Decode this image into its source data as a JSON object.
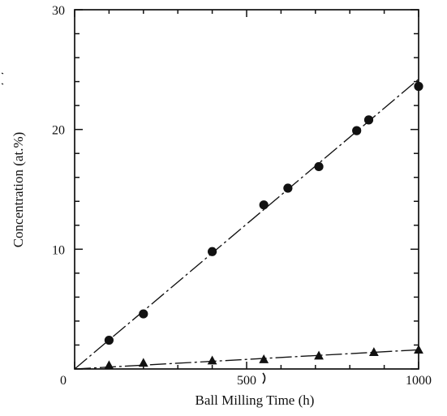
{
  "chart_data": {
    "type": "scatter",
    "title": "",
    "xlabel": "Ball Milling Time (h)",
    "ylabel": "Concentration (at.%)",
    "xlim": [
      0,
      1000
    ],
    "ylim": [
      0,
      30
    ],
    "x_ticks": [
      0,
      500,
      1000
    ],
    "y_ticks": [
      0,
      10,
      20,
      30
    ],
    "x_minor_tick_step": 100,
    "y_minor_tick_step": 2,
    "grid": false,
    "legend": "none",
    "series": [
      {
        "marker": "circle",
        "color": "#111111",
        "fit_line": "dash-dot",
        "points": [
          {
            "x": 100,
            "y": 2.4
          },
          {
            "x": 200,
            "y": 4.6
          },
          {
            "x": 400,
            "y": 9.8
          },
          {
            "x": 550,
            "y": 13.7
          },
          {
            "x": 620,
            "y": 15.1
          },
          {
            "x": 710,
            "y": 16.9
          },
          {
            "x": 820,
            "y": 19.9
          },
          {
            "x": 855,
            "y": 20.8
          },
          {
            "x": 1000,
            "y": 23.6
          }
        ],
        "fit": {
          "x0": 0,
          "y0": 0,
          "x1": 1000,
          "y1": 24.2
        }
      },
      {
        "marker": "triangle",
        "color": "#111111",
        "fit_line": "dash-dot",
        "points": [
          {
            "x": 100,
            "y": 0.3
          },
          {
            "x": 200,
            "y": 0.5
          },
          {
            "x": 400,
            "y": 0.7
          },
          {
            "x": 550,
            "y": 0.8
          },
          {
            "x": 710,
            "y": 1.1
          },
          {
            "x": 870,
            "y": 1.4
          },
          {
            "x": 1000,
            "y": 1.6
          }
        ],
        "fit": {
          "x0": 0,
          "y0": 0,
          "x1": 1000,
          "y1": 1.6
        }
      }
    ]
  }
}
